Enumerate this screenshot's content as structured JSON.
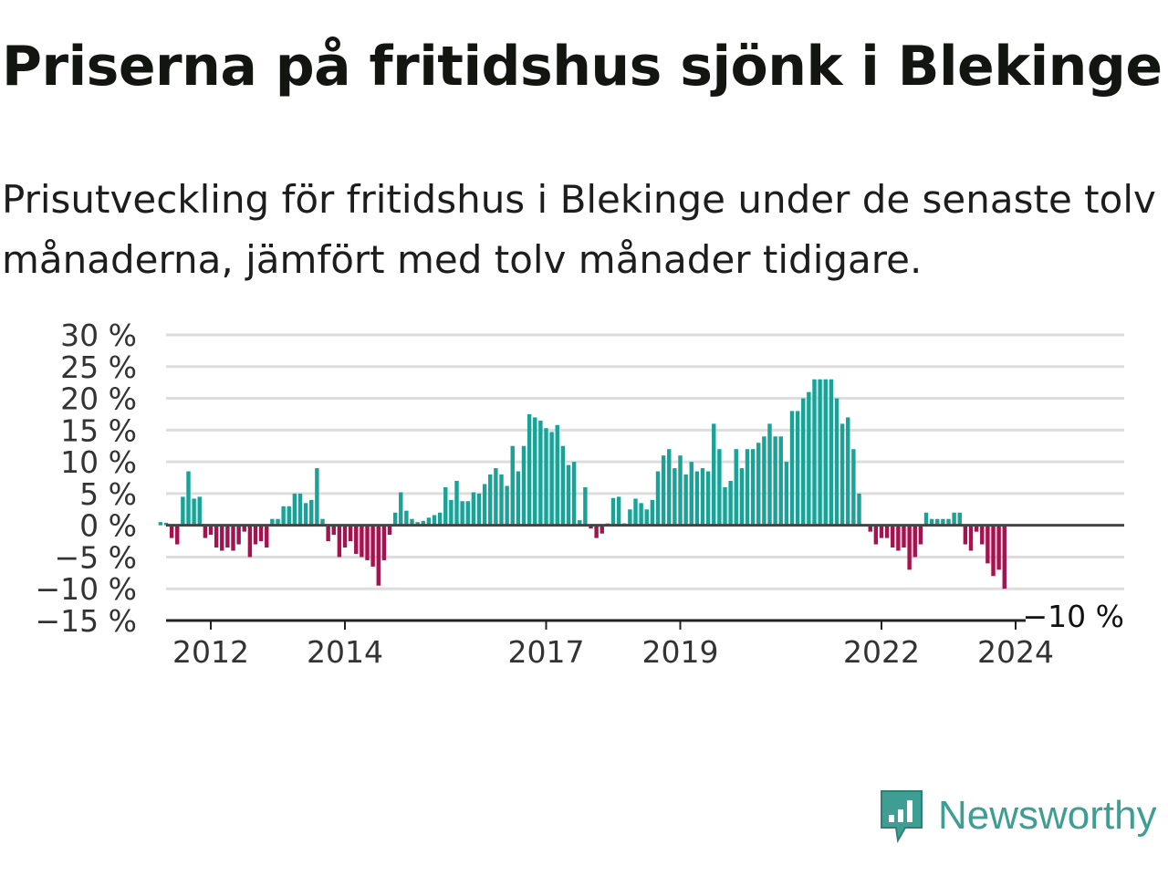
{
  "header": {
    "title": "Priserna på fritidshus sjönk i Blekinge",
    "subtitle": "Prisutveckling för fritidshus i Blekinge under de senaste tolv månaderna, jämfört med tolv månader tidigare."
  },
  "brand": {
    "name": "Newsworthy",
    "icon": "newsworthy-logo-icon",
    "color": "#3f9e94"
  },
  "colors": {
    "positive": "#17a398",
    "negative": "#a3134f",
    "grid": "#dddddd",
    "zero_line": "#444444"
  },
  "chart_data": {
    "type": "bar",
    "title": "Priserna på fritidshus sjönk i Blekinge",
    "xlabel": "",
    "ylabel": "",
    "ylim": [
      -15,
      30
    ],
    "y_ticks": [
      30,
      25,
      20,
      15,
      10,
      5,
      0,
      -5,
      -10,
      -15
    ],
    "y_tick_labels": [
      "30 %",
      "25 %",
      "20 %",
      "15 %",
      "10 %",
      "5 %",
      "0 %",
      "−5 %",
      "−10 %",
      "−15 %"
    ],
    "x_ticks": [
      "2012",
      "2014",
      "2017",
      "2019",
      "2022",
      "2024"
    ],
    "x_tick_dates": [
      "2012-01",
      "2014-01",
      "2017-01",
      "2019-01",
      "2022-01",
      "2024-01"
    ],
    "grid": true,
    "start_month": "2011-04",
    "values": [
      0.5,
      0.4,
      -2,
      -3,
      4.5,
      8.5,
      4.2,
      4.5,
      -2,
      -1.5,
      -3.5,
      -4,
      -3.5,
      -4,
      -3,
      -1,
      -5,
      -3,
      -2.5,
      -3.5,
      1,
      1,
      3,
      3,
      5,
      5,
      3.5,
      4,
      9,
      1,
      -2.5,
      -1.5,
      -5,
      -3.5,
      -2.5,
      -4.5,
      -5,
      -5.5,
      -6.5,
      -9.5,
      -5.5,
      -1.5,
      2,
      5.2,
      2.3,
      1,
      0.5,
      0.7,
      1.2,
      1.6,
      2,
      6,
      4,
      7,
      3.8,
      3.8,
      5.2,
      5,
      6.5,
      8,
      9,
      8,
      6.2,
      12.5,
      8.5,
      12.5,
      17.5,
      17,
      16.5,
      15.3,
      14.7,
      15.8,
      12.5,
      9.5,
      10,
      0.8,
      6,
      -0.5,
      -2,
      -1.3,
      0.3,
      4.3,
      4.5,
      0.3,
      2.5,
      4.2,
      3.5,
      2.5,
      4,
      8.5,
      11,
      12,
      9,
      11,
      8,
      10,
      8.5,
      9,
      8.5,
      16,
      12,
      6,
      7,
      12,
      9,
      12,
      12,
      13,
      14,
      16,
      14,
      14,
      10,
      18,
      18,
      20,
      21,
      23,
      23,
      23,
      23,
      20,
      16,
      17,
      12,
      5,
      0,
      -1,
      -3,
      -2,
      -2,
      -3.5,
      -4,
      -3.5,
      -7,
      -5,
      -3,
      2,
      1,
      1,
      1,
      1,
      2,
      2,
      -3,
      -4,
      -1,
      -3,
      -6,
      -8,
      -7,
      -10
    ],
    "end_label": "−10 %"
  }
}
